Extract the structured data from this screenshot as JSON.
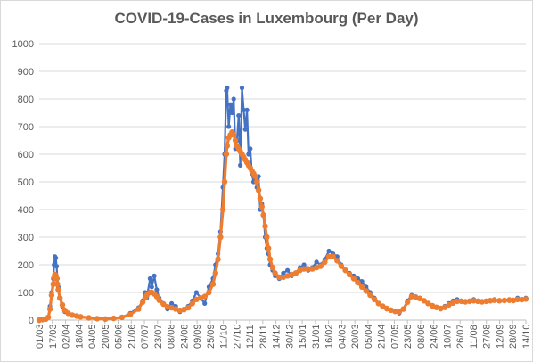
{
  "chart_data": {
    "type": "line",
    "title": "COVID-19-Cases in Luxembourg (Per Day)",
    "xlabel": "",
    "ylabel": "",
    "ylim": [
      0,
      1000
    ],
    "yticks": [
      0,
      100,
      200,
      300,
      400,
      500,
      600,
      700,
      800,
      900,
      1000
    ],
    "grid": "horizontal",
    "legend": "none",
    "categories": [
      "01/03",
      "17/03",
      "02/04",
      "18/04",
      "04/05",
      "20/05",
      "05/06",
      "21/06",
      "07/07",
      "23/07",
      "08/08",
      "24/08",
      "09/09",
      "25/09",
      "11/10",
      "27/10",
      "12/11",
      "28/11",
      "14/12",
      "30/12",
      "15/01",
      "31/01",
      "16/02",
      "04/03",
      "20/03",
      "05/04",
      "21/04",
      "07/05",
      "23/05",
      "08/06",
      "24/06",
      "10/07",
      "26/07",
      "11/08",
      "27/08",
      "12/09",
      "28/09",
      "14/10"
    ],
    "series": [
      {
        "role": "daily cases",
        "color": "#4472c4",
        "values": [
          [
            0,
            0
          ],
          [
            4,
            2
          ],
          [
            8,
            5
          ],
          [
            11,
            10
          ],
          [
            13,
            50
          ],
          [
            15,
            100
          ],
          [
            17,
            150
          ],
          [
            18,
            200
          ],
          [
            19,
            230
          ],
          [
            20,
            225
          ],
          [
            21,
            195
          ],
          [
            22,
            150
          ],
          [
            23,
            120
          ],
          [
            25,
            80
          ],
          [
            28,
            50
          ],
          [
            31,
            30
          ],
          [
            35,
            25
          ],
          [
            40,
            18
          ],
          [
            45,
            15
          ],
          [
            50,
            12
          ],
          [
            60,
            8
          ],
          [
            70,
            5
          ],
          [
            80,
            4
          ],
          [
            90,
            6
          ],
          [
            100,
            10
          ],
          [
            110,
            25
          ],
          [
            120,
            45
          ],
          [
            125,
            70
          ],
          [
            128,
            100
          ],
          [
            130,
            80
          ],
          [
            134,
            150
          ],
          [
            136,
            120
          ],
          [
            139,
            160
          ],
          [
            142,
            110
          ],
          [
            145,
            80
          ],
          [
            150,
            60
          ],
          [
            155,
            40
          ],
          [
            160,
            60
          ],
          [
            165,
            50
          ],
          [
            170,
            30
          ],
          [
            175,
            40
          ],
          [
            180,
            50
          ],
          [
            185,
            70
          ],
          [
            190,
            100
          ],
          [
            195,
            80
          ],
          [
            200,
            60
          ],
          [
            205,
            120
          ],
          [
            210,
            150
          ],
          [
            213,
            200
          ],
          [
            216,
            240
          ],
          [
            219,
            320
          ],
          [
            222,
            480
          ],
          [
            224,
            600
          ],
          [
            226,
            830
          ],
          [
            227,
            840
          ],
          [
            229,
            700
          ],
          [
            231,
            780
          ],
          [
            233,
            750
          ],
          [
            235,
            800
          ],
          [
            237,
            620
          ],
          [
            239,
            650
          ],
          [
            241,
            740
          ],
          [
            243,
            560
          ],
          [
            245,
            840
          ],
          [
            247,
            760
          ],
          [
            249,
            690
          ],
          [
            251,
            760
          ],
          [
            253,
            600
          ],
          [
            255,
            620
          ],
          [
            257,
            530
          ],
          [
            259,
            500
          ],
          [
            261,
            520
          ],
          [
            263,
            480
          ],
          [
            265,
            520
          ],
          [
            267,
            400
          ],
          [
            269,
            420
          ],
          [
            271,
            380
          ],
          [
            273,
            300
          ],
          [
            275,
            260
          ],
          [
            277,
            240
          ],
          [
            279,
            200
          ],
          [
            282,
            180
          ],
          [
            285,
            160
          ],
          [
            290,
            150
          ],
          [
            295,
            170
          ],
          [
            300,
            180
          ],
          [
            305,
            160
          ],
          [
            310,
            170
          ],
          [
            315,
            190
          ],
          [
            320,
            200
          ],
          [
            325,
            180
          ],
          [
            330,
            190
          ],
          [
            335,
            210
          ],
          [
            340,
            200
          ],
          [
            345,
            220
          ],
          [
            350,
            250
          ],
          [
            355,
            240
          ],
          [
            360,
            230
          ],
          [
            365,
            200
          ],
          [
            370,
            180
          ],
          [
            375,
            170
          ],
          [
            380,
            160
          ],
          [
            385,
            150
          ],
          [
            390,
            140
          ],
          [
            395,
            120
          ],
          [
            400,
            100
          ],
          [
            405,
            80
          ],
          [
            410,
            60
          ],
          [
            415,
            50
          ],
          [
            420,
            40
          ],
          [
            425,
            35
          ],
          [
            430,
            30
          ],
          [
            435,
            25
          ],
          [
            440,
            40
          ],
          [
            445,
            70
          ],
          [
            450,
            90
          ],
          [
            455,
            85
          ],
          [
            460,
            80
          ],
          [
            465,
            70
          ],
          [
            470,
            60
          ],
          [
            475,
            50
          ],
          [
            480,
            45
          ],
          [
            485,
            40
          ],
          [
            490,
            50
          ],
          [
            495,
            60
          ],
          [
            500,
            70
          ],
          [
            505,
            75
          ],
          [
            510,
            70
          ],
          [
            515,
            65
          ],
          [
            520,
            70
          ],
          [
            525,
            75
          ],
          [
            530,
            70
          ],
          [
            535,
            65
          ],
          [
            540,
            70
          ],
          [
            545,
            72
          ],
          [
            550,
            75
          ],
          [
            556,
            70
          ],
          [
            562,
            72
          ],
          [
            568,
            75
          ],
          [
            573,
            70
          ],
          [
            578,
            80
          ],
          [
            583,
            75
          ],
          [
            588,
            80
          ]
        ]
      },
      {
        "role": "smoothed average",
        "color": "#ed7d31",
        "values": [
          [
            0,
            0
          ],
          [
            4,
            2
          ],
          [
            8,
            4
          ],
          [
            11,
            10
          ],
          [
            13,
            40
          ],
          [
            15,
            90
          ],
          [
            17,
            130
          ],
          [
            18,
            155
          ],
          [
            19,
            165
          ],
          [
            20,
            162
          ],
          [
            21,
            150
          ],
          [
            22,
            130
          ],
          [
            23,
            110
          ],
          [
            25,
            80
          ],
          [
            28,
            55
          ],
          [
            31,
            35
          ],
          [
            35,
            25
          ],
          [
            40,
            18
          ],
          [
            45,
            15
          ],
          [
            50,
            12
          ],
          [
            60,
            8
          ],
          [
            70,
            5
          ],
          [
            80,
            4
          ],
          [
            90,
            6
          ],
          [
            100,
            10
          ],
          [
            110,
            20
          ],
          [
            120,
            40
          ],
          [
            125,
            65
          ],
          [
            128,
            80
          ],
          [
            130,
            90
          ],
          [
            134,
            100
          ],
          [
            136,
            100
          ],
          [
            139,
            95
          ],
          [
            142,
            85
          ],
          [
            145,
            72
          ],
          [
            150,
            58
          ],
          [
            155,
            48
          ],
          [
            160,
            45
          ],
          [
            165,
            40
          ],
          [
            170,
            35
          ],
          [
            175,
            38
          ],
          [
            180,
            45
          ],
          [
            185,
            60
          ],
          [
            190,
            75
          ],
          [
            195,
            80
          ],
          [
            200,
            85
          ],
          [
            205,
            100
          ],
          [
            210,
            130
          ],
          [
            213,
            170
          ],
          [
            216,
            220
          ],
          [
            219,
            300
          ],
          [
            222,
            400
          ],
          [
            224,
            500
          ],
          [
            226,
            600
          ],
          [
            227,
            630
          ],
          [
            229,
            660
          ],
          [
            231,
            670
          ],
          [
            233,
            680
          ],
          [
            235,
            670
          ],
          [
            237,
            650
          ],
          [
            239,
            630
          ],
          [
            241,
            620
          ],
          [
            243,
            610
          ],
          [
            245,
            600
          ],
          [
            247,
            590
          ],
          [
            249,
            580
          ],
          [
            251,
            570
          ],
          [
            253,
            560
          ],
          [
            255,
            550
          ],
          [
            257,
            540
          ],
          [
            259,
            530
          ],
          [
            261,
            520
          ],
          [
            263,
            500
          ],
          [
            265,
            470
          ],
          [
            267,
            440
          ],
          [
            269,
            410
          ],
          [
            271,
            380
          ],
          [
            273,
            340
          ],
          [
            275,
            300
          ],
          [
            277,
            260
          ],
          [
            279,
            220
          ],
          [
            282,
            190
          ],
          [
            285,
            170
          ],
          [
            290,
            155
          ],
          [
            295,
            155
          ],
          [
            300,
            160
          ],
          [
            305,
            165
          ],
          [
            310,
            170
          ],
          [
            315,
            180
          ],
          [
            320,
            185
          ],
          [
            325,
            185
          ],
          [
            330,
            185
          ],
          [
            335,
            190
          ],
          [
            340,
            195
          ],
          [
            345,
            210
          ],
          [
            350,
            230
          ],
          [
            355,
            230
          ],
          [
            360,
            215
          ],
          [
            365,
            195
          ],
          [
            370,
            180
          ],
          [
            375,
            165
          ],
          [
            380,
            150
          ],
          [
            385,
            135
          ],
          [
            390,
            120
          ],
          [
            395,
            105
          ],
          [
            400,
            90
          ],
          [
            405,
            75
          ],
          [
            410,
            60
          ],
          [
            415,
            50
          ],
          [
            420,
            42
          ],
          [
            425,
            36
          ],
          [
            430,
            32
          ],
          [
            435,
            30
          ],
          [
            440,
            40
          ],
          [
            445,
            65
          ],
          [
            450,
            85
          ],
          [
            455,
            82
          ],
          [
            460,
            78
          ],
          [
            465,
            70
          ],
          [
            470,
            60
          ],
          [
            475,
            52
          ],
          [
            480,
            46
          ],
          [
            485,
            42
          ],
          [
            490,
            46
          ],
          [
            495,
            55
          ],
          [
            500,
            62
          ],
          [
            505,
            68
          ],
          [
            510,
            68
          ],
          [
            515,
            66
          ],
          [
            520,
            68
          ],
          [
            525,
            70
          ],
          [
            530,
            68
          ],
          [
            535,
            66
          ],
          [
            540,
            68
          ],
          [
            545,
            70
          ],
          [
            550,
            72
          ],
          [
            556,
            70
          ],
          [
            562,
            71
          ],
          [
            568,
            72
          ],
          [
            573,
            71
          ],
          [
            578,
            75
          ],
          [
            583,
            74
          ],
          [
            588,
            76
          ]
        ]
      }
    ]
  }
}
